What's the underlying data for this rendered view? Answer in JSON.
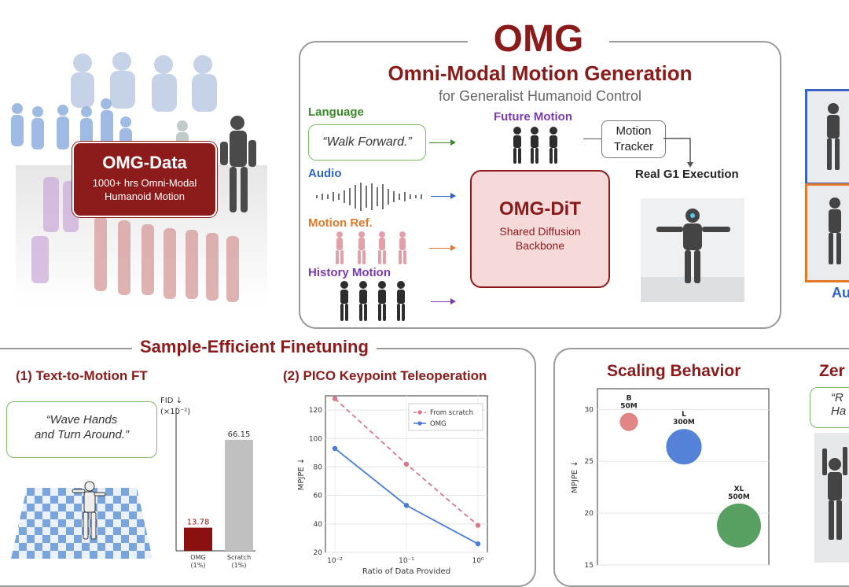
{
  "colors": {
    "maroon": "#8b1a1a",
    "green": "#3a8a2a",
    "blue": "#2f63c4",
    "orange": "#e07a2a",
    "purple": "#7a3bb0",
    "scatch_pink": "#d9788a",
    "omg_blue": "#4a7bd6"
  },
  "header": {
    "title": "OMG",
    "subtitle": "Omni-Modal Motion Generation",
    "tagline": "for Generalist Humanoid Control"
  },
  "omg_data": {
    "title": "OMG-Data",
    "desc_line1": "1000+ hrs Omni-Modal",
    "desc_line2": "Humanoid Motion"
  },
  "inputs": {
    "language_label": "Language",
    "language_quote": "“Walk Forward.”",
    "audio_label": "Audio",
    "motion_ref_label": "Motion Ref.",
    "history_label": "History Motion"
  },
  "dit": {
    "title": "OMG-DiT",
    "desc_line1": "Shared Diffusion",
    "desc_line2": "Backbone"
  },
  "future_motion": "Future Motion",
  "tracker": {
    "line1": "Motion",
    "line2": "Tracker"
  },
  "execution": "Real G1 Execution",
  "right_edge_text": "Au",
  "finetune": {
    "title": "Sample-Efficient Finetuning",
    "t2m_title": "(1) Text-to-Motion FT",
    "t2m_quote_line1": "“Wave Hands",
    "t2m_quote_line2": "and Turn Around.”",
    "pico_title": "(2) PICO Keypoint Teleoperation"
  },
  "scaling_title": "Scaling Behavior",
  "zero_title": "Zer",
  "zero_quote_line1": "“R",
  "zero_quote_line2": "Ha",
  "chart_data": [
    {
      "type": "bar",
      "title": "",
      "ylabel": "FID ↓",
      "ylabel_unit": "(×10⁻²)",
      "categories": [
        "OMG",
        "Scratch"
      ],
      "category_sub": [
        "(1%)",
        "(1%)"
      ],
      "values": [
        13.78,
        66.15
      ],
      "value_labels": [
        "13.78",
        "66.15"
      ],
      "colors": [
        "#8b1010",
        "#c0c0c0"
      ],
      "ylim": [
        0,
        75
      ]
    },
    {
      "type": "line",
      "xlabel": "Ratio of Data Provided",
      "ylabel": "MPJPE ↓",
      "x": [
        0.01,
        0.1,
        1
      ],
      "x_ticks": [
        "10⁻²",
        "10⁻¹",
        "10⁰"
      ],
      "x_scale": "log",
      "ylim": [
        20,
        130
      ],
      "y_ticks": [
        20,
        40,
        60,
        80,
        100,
        120
      ],
      "legend": "top-right",
      "grid": true,
      "series": [
        {
          "name": "From scratch",
          "values": [
            128,
            82,
            39
          ],
          "color": "#d9788a",
          "style": "dashed"
        },
        {
          "name": "OMG",
          "values": [
            93,
            53,
            26
          ],
          "color": "#4a7bd6",
          "style": "solid"
        }
      ]
    },
    {
      "type": "scatter",
      "title": "Scaling Behavior",
      "ylabel": "MPJPE ↓",
      "ylim": [
        15,
        32
      ],
      "y_ticks": [
        15,
        20,
        25,
        30
      ],
      "grid": true,
      "points": [
        {
          "label": "B",
          "sub": "50M",
          "x": 1,
          "y": 28.8,
          "params_m": 50,
          "color": "#e07e7e"
        },
        {
          "label": "L",
          "sub": "300M",
          "x": 2,
          "y": 26.4,
          "params_m": 300,
          "color": "#4a7bd6"
        },
        {
          "label": "XL",
          "sub": "500M",
          "x": 3,
          "y": 18.8,
          "params_m": 500,
          "color": "#4f9a5a"
        }
      ]
    }
  ]
}
